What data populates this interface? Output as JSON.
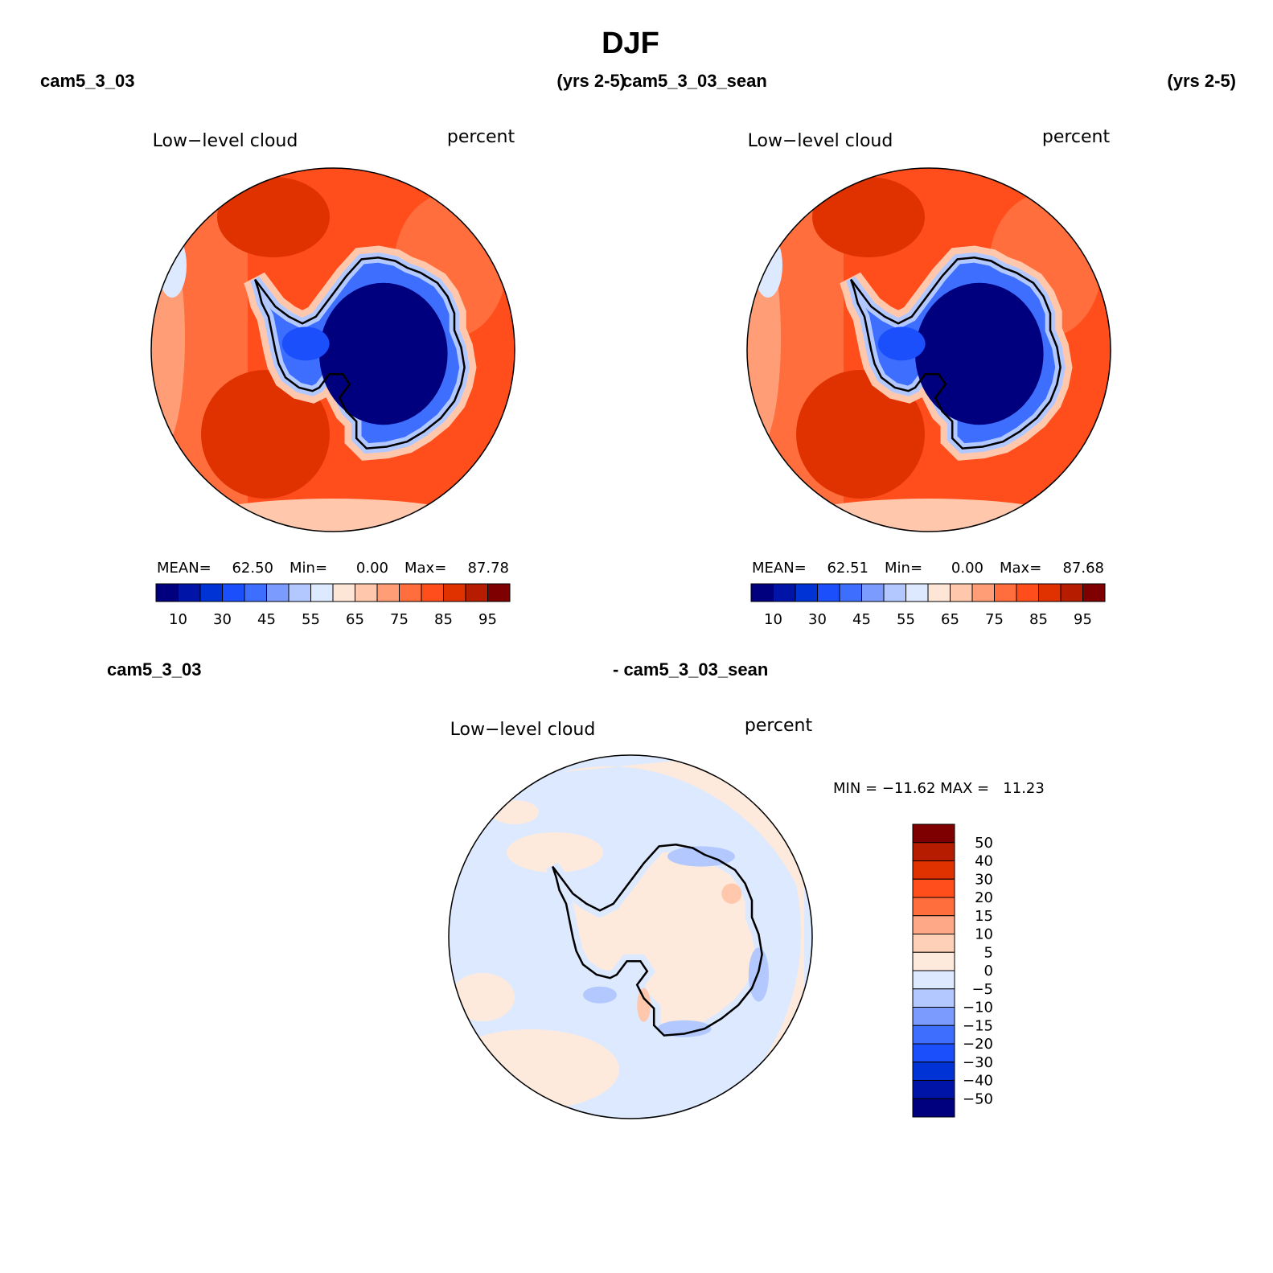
{
  "title": "DJF",
  "panels": [
    {
      "id": "a",
      "case_label": "cam5_3_03",
      "years_label": "(yrs 2-5)",
      "field_label": "Low−level cloud",
      "units_label": "percent",
      "stats": {
        "mean_label": "MEAN=",
        "mean": "62.50",
        "min_label": "Min=",
        "min": "0.00",
        "max_label": "Max=",
        "max": "87.78"
      },
      "colorbar_ticks": [
        "10",
        "30",
        "45",
        "55",
        "65",
        "75",
        "85",
        "95"
      ]
    },
    {
      "id": "b",
      "case_label": "cam5_3_03_sean",
      "years_label": "(yrs 2-5)",
      "field_label": "Low−level cloud",
      "units_label": "percent",
      "stats": {
        "mean_label": "MEAN=",
        "mean": "62.51",
        "min_label": "Min=",
        "min": "0.00",
        "max_label": "Max=",
        "max": "87.68"
      },
      "colorbar_ticks": [
        "10",
        "30",
        "45",
        "55",
        "65",
        "75",
        "85",
        "95"
      ]
    }
  ],
  "difference": {
    "case_a": "cam5_3_03",
    "case_b": "- cam5_3_03_sean",
    "field_label": "Low−level cloud",
    "units_label": "percent",
    "minmax_text": "MIN = −11.62 MAX =   11.23",
    "colorbar_ticks": [
      "50",
      "40",
      "30",
      "20",
      "15",
      "10",
      "5",
      "0",
      "−5",
      "−10",
      "−15",
      "−20",
      "−30",
      "−40",
      "−50"
    ]
  },
  "colors": {
    "abs_scale": [
      "#00007f",
      "#0015a8",
      "#0033d6",
      "#1b4ffb",
      "#3d6efe",
      "#7b9bff",
      "#b2c8ff",
      "#dde9ff",
      "#fee6d6",
      "#ffc8ad",
      "#ff9e76",
      "#ff6e3c",
      "#ff4e1c",
      "#e03200",
      "#b51c00",
      "#7f0000"
    ],
    "diff_scale_top_down": [
      "#7f0000",
      "#b51c00",
      "#e03200",
      "#ff4e1c",
      "#ff6e3c",
      "#ffa888",
      "#ffd0b8",
      "#feeadc",
      "#dde9ff",
      "#b2c8ff",
      "#7b9bff",
      "#3d6efe",
      "#1b4ffb",
      "#0033d6",
      "#0015a8",
      "#00007f"
    ]
  }
}
